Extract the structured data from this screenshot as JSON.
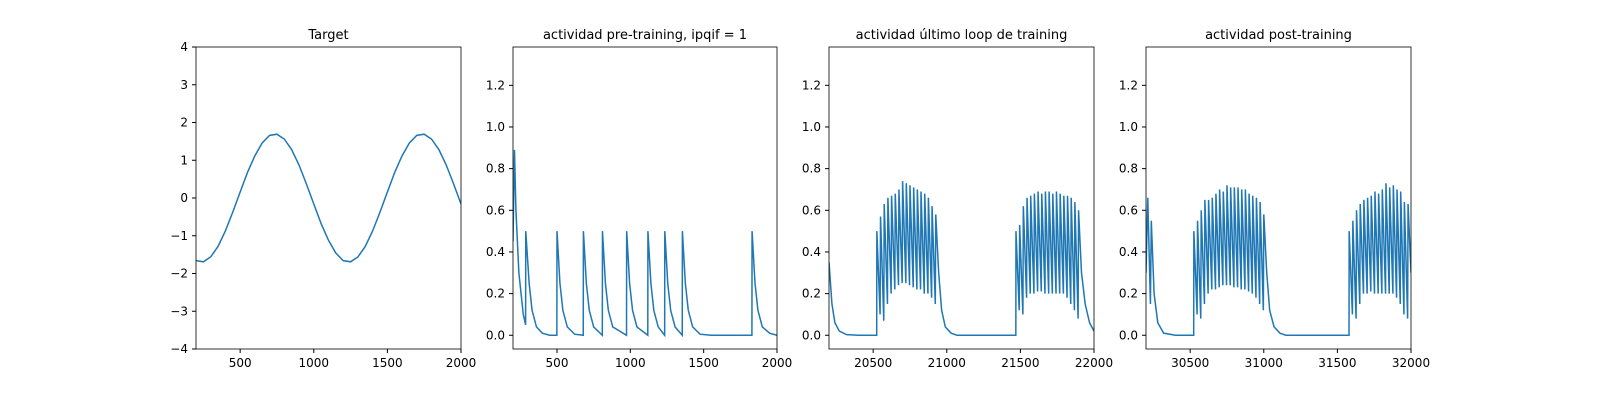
{
  "chart_data": [
    {
      "type": "line",
      "title": "Target",
      "color": "#1f77b4",
      "xlim": [
        200,
        2000
      ],
      "ylim": [
        -4,
        4
      ],
      "xticks": [
        500,
        1000,
        1500,
        2000
      ],
      "yticks": [
        {
          "value": -4,
          "label": "−4"
        },
        {
          "value": -3,
          "label": "−3"
        },
        {
          "value": -2,
          "label": "−2"
        },
        {
          "value": -1,
          "label": "−1"
        },
        0,
        1,
        2,
        3,
        4
      ],
      "x": [
        200,
        250,
        300,
        350,
        400,
        450,
        500,
        550,
        600,
        650,
        700,
        750,
        800,
        850,
        900,
        950,
        1000,
        1050,
        1100,
        1150,
        1200,
        1250,
        1300,
        1350,
        1400,
        1450,
        1500,
        1550,
        1600,
        1650,
        1700,
        1750,
        1800,
        1850,
        1900,
        1950,
        2000
      ],
      "values": [
        -1.66,
        -1.69,
        -1.56,
        -1.28,
        -0.87,
        -0.37,
        0.16,
        0.68,
        1.12,
        1.46,
        1.66,
        1.69,
        1.56,
        1.28,
        0.87,
        0.37,
        -0.16,
        -0.68,
        -1.12,
        -1.46,
        -1.66,
        -1.69,
        -1.56,
        -1.28,
        -0.87,
        -0.37,
        0.16,
        0.68,
        1.12,
        1.46,
        1.66,
        1.69,
        1.56,
        1.28,
        0.87,
        0.37,
        -0.16
      ]
    },
    {
      "type": "line",
      "title": "actividad pre-training, ipqif = 1",
      "color": "#1f77b4",
      "xlim": [
        200,
        2000
      ],
      "ylim": [
        -0.066,
        1.384
      ],
      "xticks": [
        500,
        1000,
        1500,
        2000
      ],
      "yticks": [
        {
          "value": 0,
          "label": "0.0"
        },
        0.2,
        0.4,
        0.6,
        0.8,
        {
          "value": 1,
          "label": "1.0"
        },
        1.2
      ],
      "x": [
        200,
        210,
        220,
        240,
        270,
        286,
        287,
        310,
        330,
        360,
        400,
        450,
        499,
        500,
        520,
        540,
        570,
        620,
        679,
        680,
        700,
        720,
        750,
        809,
        810,
        830,
        850,
        880,
        974,
        975,
        995,
        1015,
        1045,
        1119,
        1120,
        1140,
        1160,
        1190,
        1234,
        1235,
        1255,
        1275,
        1305,
        1354,
        1355,
        1375,
        1395,
        1425,
        1475,
        1550,
        1829,
        1830,
        1850,
        1870,
        1900,
        1950,
        2000
      ],
      "values": [
        0.45,
        0.89,
        0.6,
        0.3,
        0.1,
        0.05,
        0.5,
        0.25,
        0.12,
        0.04,
        0.01,
        0,
        0,
        0.5,
        0.25,
        0.12,
        0.04,
        0.005,
        0,
        0.5,
        0.25,
        0.12,
        0.04,
        0,
        0.5,
        0.25,
        0.12,
        0.04,
        0,
        0.5,
        0.25,
        0.12,
        0.04,
        0,
        0.5,
        0.25,
        0.12,
        0.04,
        0,
        0.5,
        0.25,
        0.12,
        0.04,
        0,
        0.5,
        0.25,
        0.12,
        0.04,
        0.005,
        0,
        0,
        0.5,
        0.25,
        0.12,
        0.04,
        0.01,
        0
      ]
    },
    {
      "type": "line",
      "title": "actividad último loop de training",
      "color": "#1f77b4",
      "xlim": [
        20200,
        22000
      ],
      "ylim": [
        -0.066,
        1.384
      ],
      "xticks": [
        20500,
        21000,
        21500,
        22000
      ],
      "yticks": [
        {
          "value": 0,
          "label": "0.0"
        },
        0.2,
        0.4,
        0.6,
        0.8,
        {
          "value": 1,
          "label": "1.0"
        },
        1.2
      ],
      "x": [
        20200,
        20220,
        20240,
        20270,
        20320,
        20400,
        20524,
        20525,
        20547,
        20550,
        20572,
        20575,
        20597,
        20600,
        20622,
        20625,
        20647,
        20650,
        20672,
        20675,
        20697,
        20700,
        20722,
        20725,
        20747,
        20750,
        20772,
        20775,
        20797,
        20800,
        20822,
        20825,
        20847,
        20850,
        20872,
        20875,
        20897,
        20900,
        20922,
        20925,
        20945,
        20965,
        20990,
        21030,
        21070,
        21469,
        21470,
        21492,
        21495,
        21517,
        21520,
        21542,
        21545,
        21567,
        21570,
        21592,
        21595,
        21617,
        21620,
        21642,
        21645,
        21667,
        21670,
        21692,
        21695,
        21717,
        21720,
        21742,
        21745,
        21767,
        21770,
        21792,
        21795,
        21817,
        21820,
        21842,
        21845,
        21867,
        21870,
        21892,
        21895,
        21915,
        21940,
        21970,
        22000
      ],
      "values": [
        0.35,
        0.15,
        0.06,
        0.02,
        0.003,
        0,
        0,
        0.5,
        0.1,
        0.57,
        0.07,
        0.63,
        0.15,
        0.66,
        0.2,
        0.67,
        0.22,
        0.68,
        0.24,
        0.7,
        0.25,
        0.74,
        0.25,
        0.73,
        0.24,
        0.72,
        0.23,
        0.71,
        0.22,
        0.7,
        0.22,
        0.69,
        0.2,
        0.68,
        0.2,
        0.66,
        0.18,
        0.62,
        0.15,
        0.58,
        0.3,
        0.12,
        0.04,
        0.01,
        0,
        0,
        0.5,
        0.12,
        0.53,
        0.1,
        0.62,
        0.18,
        0.66,
        0.2,
        0.67,
        0.2,
        0.68,
        0.21,
        0.69,
        0.21,
        0.68,
        0.2,
        0.69,
        0.2,
        0.69,
        0.2,
        0.68,
        0.2,
        0.69,
        0.2,
        0.68,
        0.2,
        0.67,
        0.18,
        0.67,
        0.15,
        0.66,
        0.12,
        0.64,
        0.08,
        0.6,
        0.3,
        0.15,
        0.06,
        0.02
      ]
    },
    {
      "type": "line",
      "title": "actividad post-training",
      "color": "#1f77b4",
      "xlim": [
        30200,
        32000
      ],
      "ylim": [
        -0.066,
        1.384
      ],
      "xticks": [
        30500,
        31000,
        31500,
        32000
      ],
      "yticks": [
        {
          "value": 0,
          "label": "0.0"
        },
        0.2,
        0.4,
        0.6,
        0.8,
        {
          "value": 1,
          "label": "1.0"
        },
        1.2
      ],
      "x": [
        30200,
        30212,
        30230,
        30236,
        30255,
        30280,
        30320,
        30400,
        30524,
        30525,
        30547,
        30550,
        30572,
        30575,
        30597,
        30600,
        30622,
        30625,
        30647,
        30650,
        30672,
        30675,
        30697,
        30700,
        30722,
        30725,
        30747,
        30750,
        30772,
        30775,
        30797,
        30800,
        30822,
        30825,
        30847,
        30850,
        30872,
        30875,
        30897,
        30900,
        30922,
        30925,
        30947,
        30950,
        30972,
        30975,
        30997,
        31000,
        31020,
        31040,
        31070,
        31110,
        31150,
        31579,
        31580,
        31602,
        31605,
        31627,
        31630,
        31652,
        31655,
        31677,
        31680,
        31702,
        31705,
        31727,
        31730,
        31752,
        31755,
        31777,
        31780,
        31802,
        31805,
        31827,
        31830,
        31852,
        31855,
        31877,
        31880,
        31902,
        31905,
        31927,
        31930,
        31952,
        31955,
        31977,
        31980,
        32000
      ],
      "values": [
        0.3,
        0.66,
        0.15,
        0.55,
        0.2,
        0.06,
        0.01,
        0,
        0,
        0.5,
        0.1,
        0.55,
        0.08,
        0.6,
        0.15,
        0.65,
        0.2,
        0.65,
        0.22,
        0.66,
        0.22,
        0.68,
        0.23,
        0.7,
        0.24,
        0.69,
        0.24,
        0.72,
        0.24,
        0.71,
        0.23,
        0.71,
        0.23,
        0.71,
        0.22,
        0.7,
        0.22,
        0.7,
        0.21,
        0.68,
        0.2,
        0.67,
        0.18,
        0.66,
        0.15,
        0.64,
        0.12,
        0.58,
        0.3,
        0.12,
        0.04,
        0.01,
        0,
        0,
        0.5,
        0.1,
        0.55,
        0.08,
        0.6,
        0.15,
        0.63,
        0.2,
        0.65,
        0.2,
        0.66,
        0.21,
        0.67,
        0.2,
        0.69,
        0.2,
        0.68,
        0.2,
        0.7,
        0.2,
        0.73,
        0.2,
        0.71,
        0.2,
        0.72,
        0.18,
        0.7,
        0.15,
        0.69,
        0.1,
        0.64,
        0.08,
        0.63,
        0.3
      ]
    }
  ]
}
